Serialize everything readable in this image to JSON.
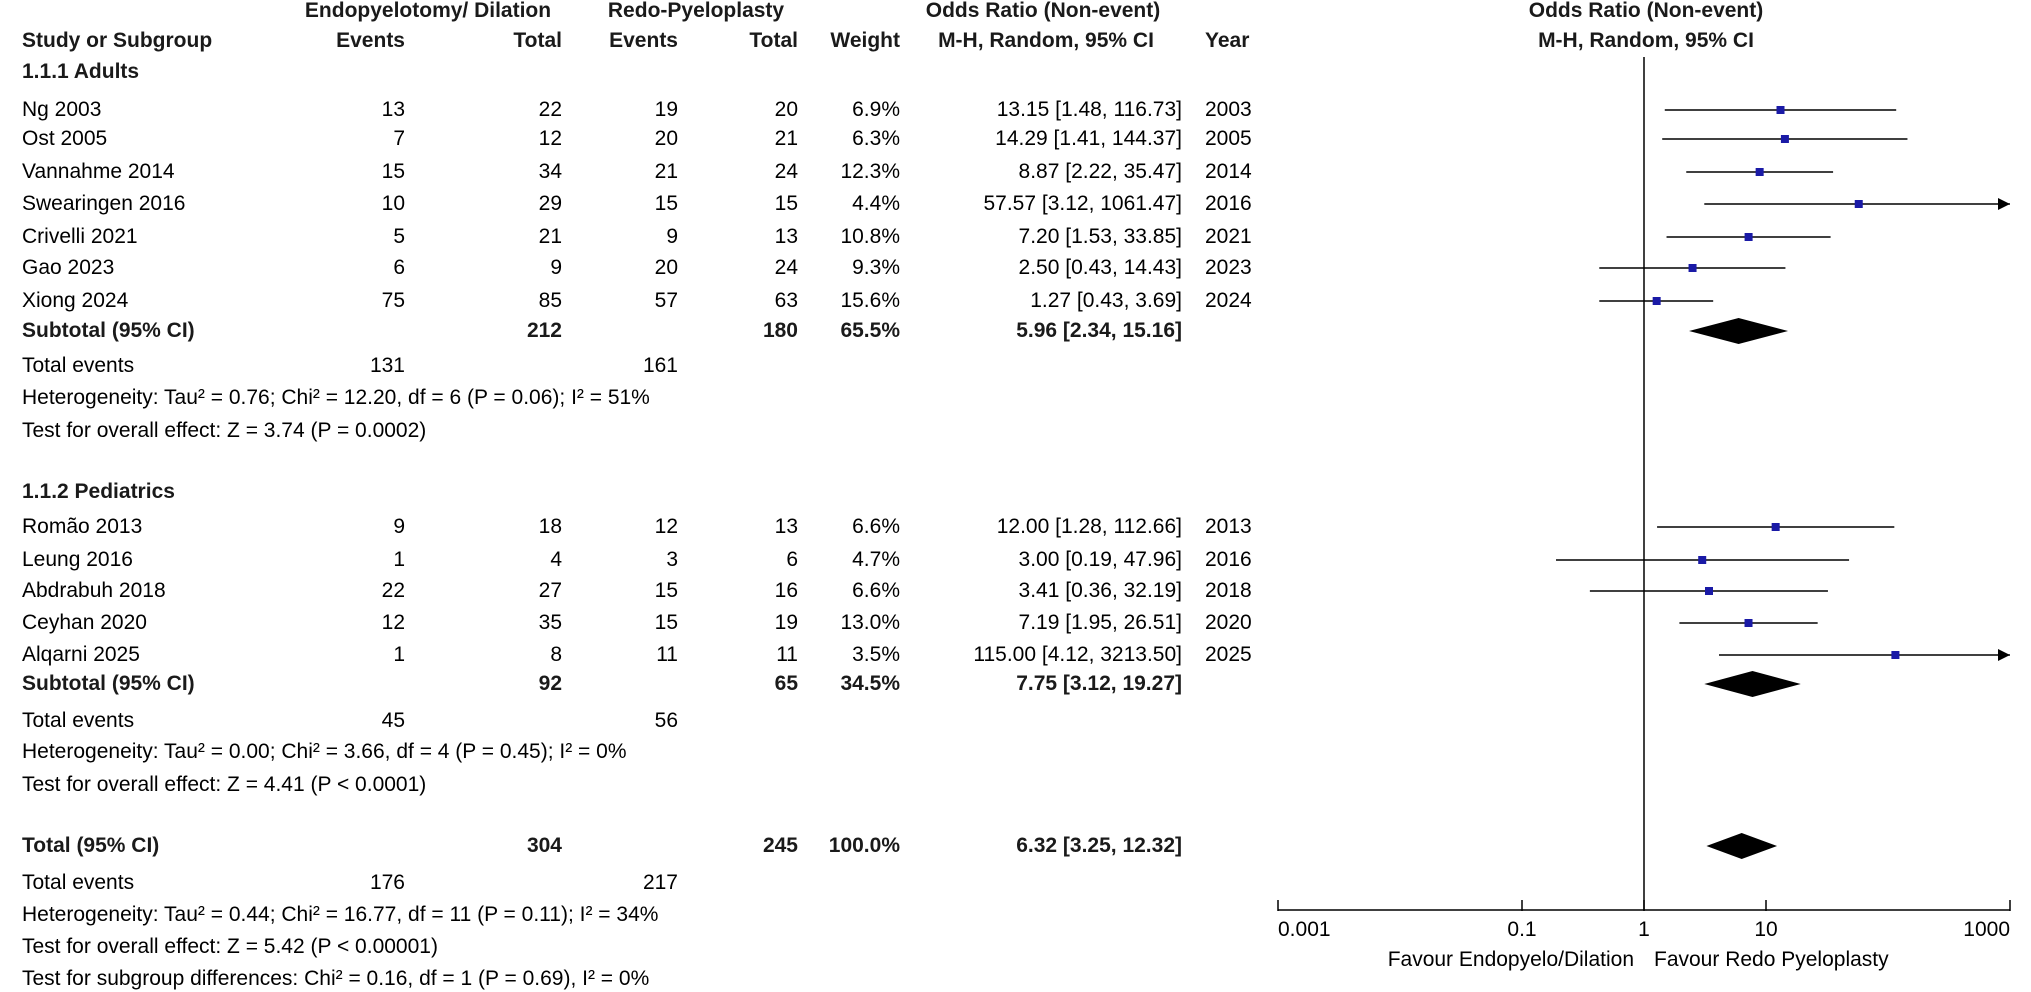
{
  "header": {
    "group1": "Endopyelotomy/ Dilation",
    "group2": "Redo-Pyeloplasty",
    "or_header": "Odds Ratio (Non-event)",
    "or_sub": "M-H, Random, 95% CI",
    "plot_header": "Odds Ratio (Non-event)",
    "plot_sub": "M-H, Random, 95% CI",
    "col_study": "Study or Subgroup",
    "col_events1": "Events",
    "col_total1": "Total",
    "col_events2": "Events",
    "col_total2": "Total",
    "col_weight": "Weight",
    "col_year": "Year"
  },
  "groups": [
    {
      "title": "1.1.1 Adults",
      "studies": [
        {
          "name": "Ng 2003",
          "e1": "13",
          "t1": "22",
          "e2": "19",
          "t2": "20",
          "weight": "6.9%",
          "ci_text": "13.15 [1.48, 116.73]",
          "year": "2003"
        },
        {
          "name": "Ost 2005",
          "e1": "7",
          "t1": "12",
          "e2": "20",
          "t2": "21",
          "weight": "6.3%",
          "ci_text": "14.29 [1.41, 144.37]",
          "year": "2005"
        },
        {
          "name": "Vannahme 2014",
          "e1": "15",
          "t1": "34",
          "e2": "21",
          "t2": "24",
          "weight": "12.3%",
          "ci_text": "8.87 [2.22, 35.47]",
          "year": "2014"
        },
        {
          "name": "Swearingen 2016",
          "e1": "10",
          "t1": "29",
          "e2": "15",
          "t2": "15",
          "weight": "4.4%",
          "ci_text": "57.57 [3.12, 1061.47]",
          "year": "2016"
        },
        {
          "name": "Crivelli 2021",
          "e1": "5",
          "t1": "21",
          "e2": "9",
          "t2": "13",
          "weight": "10.8%",
          "ci_text": "7.20 [1.53, 33.85]",
          "year": "2021"
        },
        {
          "name": "Gao 2023",
          "e1": "6",
          "t1": "9",
          "e2": "20",
          "t2": "24",
          "weight": "9.3%",
          "ci_text": "2.50 [0.43, 14.43]",
          "year": "2023"
        },
        {
          "name": "Xiong 2024",
          "e1": "75",
          "t1": "85",
          "e2": "57",
          "t2": "63",
          "weight": "15.6%",
          "ci_text": "1.27 [0.43, 3.69]",
          "year": "2024"
        }
      ],
      "subtotal": {
        "label": "Subtotal (95% CI)",
        "t1": "212",
        "t2": "180",
        "weight": "65.5%",
        "ci_text": "5.96 [2.34, 15.16]"
      },
      "total_events": {
        "label": "Total events",
        "e1": "131",
        "e2": "161"
      },
      "heterogeneity": "Heterogeneity: Tau² = 0.76; Chi² = 12.20, df = 6 (P = 0.06); I² = 51%",
      "overall": "Test for overall effect: Z = 3.74 (P = 0.0002)"
    },
    {
      "title": "1.1.2 Pediatrics",
      "studies": [
        {
          "name": "Romão 2013",
          "e1": "9",
          "t1": "18",
          "e2": "12",
          "t2": "13",
          "weight": "6.6%",
          "ci_text": "12.00 [1.28, 112.66]",
          "year": "2013"
        },
        {
          "name": "Leung 2016",
          "e1": "1",
          "t1": "4",
          "e2": "3",
          "t2": "6",
          "weight": "4.7%",
          "ci_text": "3.00 [0.19, 47.96]",
          "year": "2016"
        },
        {
          "name": "Abdrabuh 2018",
          "e1": "22",
          "t1": "27",
          "e2": "15",
          "t2": "16",
          "weight": "6.6%",
          "ci_text": "3.41 [0.36, 32.19]",
          "year": "2018"
        },
        {
          "name": "Ceyhan 2020",
          "e1": "12",
          "t1": "35",
          "e2": "15",
          "t2": "19",
          "weight": "13.0%",
          "ci_text": "7.19 [1.95, 26.51]",
          "year": "2020"
        },
        {
          "name": "Alqarni 2025",
          "e1": "1",
          "t1": "8",
          "e2": "11",
          "t2": "11",
          "weight": "3.5%",
          "ci_text": "115.00 [4.12, 3213.50]",
          "year": "2025"
        }
      ],
      "subtotal": {
        "label": "Subtotal (95% CI)",
        "t1": "92",
        "t2": "65",
        "weight": "34.5%",
        "ci_text": "7.75 [3.12, 19.27]"
      },
      "total_events": {
        "label": "Total events",
        "e1": "45",
        "e2": "56"
      },
      "heterogeneity": "Heterogeneity: Tau² = 0.00; Chi² = 3.66, df = 4 (P = 0.45); I² = 0%",
      "overall": "Test for overall effect: Z = 4.41 (P < 0.0001)"
    }
  ],
  "total": {
    "label": "Total (95% CI)",
    "t1": "304",
    "t2": "245",
    "weight": "100.0%",
    "ci_text": "6.32 [3.25, 12.32]",
    "total_events": {
      "label": "Total events",
      "e1": "176",
      "e2": "217"
    },
    "heterogeneity": "Heterogeneity: Tau² = 0.44; Chi² = 16.77, df = 11 (P = 0.11); I² = 34%",
    "overall": "Test for overall effect: Z = 5.42 (P < 0.00001)",
    "subgroup": "Test for subgroup differences: Chi² = 0.16, df = 1 (P = 0.69), I² = 0%"
  },
  "axis": {
    "ticks": [
      {
        "value": 0.001,
        "label": "0.001"
      },
      {
        "value": 0.1,
        "label": "0.1"
      },
      {
        "value": 1,
        "label": "1"
      },
      {
        "value": 10,
        "label": "10"
      },
      {
        "value": 1000,
        "label": "1000"
      }
    ],
    "favour_left": "Favour Endopyelo/Dilation",
    "favour_right": "Favour Redo Pyeloplasty"
  },
  "chart_data": {
    "type": "forest",
    "scale": "log",
    "xlim": [
      0.001,
      1000
    ],
    "reference_line": 1,
    "studies": [
      {
        "label": "Ng 2003",
        "or": 13.15,
        "lo": 1.48,
        "hi": 116.73
      },
      {
        "label": "Ost 2005",
        "or": 14.29,
        "lo": 1.41,
        "hi": 144.37
      },
      {
        "label": "Vannahme 2014",
        "or": 8.87,
        "lo": 2.22,
        "hi": 35.47
      },
      {
        "label": "Swearingen 2016",
        "or": 57.57,
        "lo": 3.12,
        "hi": 1061.47
      },
      {
        "label": "Crivelli 2021",
        "or": 7.2,
        "lo": 1.53,
        "hi": 33.85
      },
      {
        "label": "Gao 2023",
        "or": 2.5,
        "lo": 0.43,
        "hi": 14.43
      },
      {
        "label": "Xiong 2024",
        "or": 1.27,
        "lo": 0.43,
        "hi": 3.69
      },
      {
        "label": "Romão 2013",
        "or": 12.0,
        "lo": 1.28,
        "hi": 112.66
      },
      {
        "label": "Leung 2016",
        "or": 3.0,
        "lo": 0.19,
        "hi": 47.96
      },
      {
        "label": "Abdrabuh 2018",
        "or": 3.41,
        "lo": 0.36,
        "hi": 32.19
      },
      {
        "label": "Ceyhan 2020",
        "or": 7.19,
        "lo": 1.95,
        "hi": 26.51
      },
      {
        "label": "Alqarni 2025",
        "or": 115.0,
        "lo": 4.12,
        "hi": 3213.5
      }
    ],
    "summaries": [
      {
        "label": "Subtotal Adults",
        "or": 5.96,
        "lo": 2.34,
        "hi": 15.16
      },
      {
        "label": "Subtotal Pediatrics",
        "or": 7.75,
        "lo": 3.12,
        "hi": 19.27
      },
      {
        "label": "Total",
        "or": 6.32,
        "lo": 3.25,
        "hi": 12.32
      }
    ]
  }
}
